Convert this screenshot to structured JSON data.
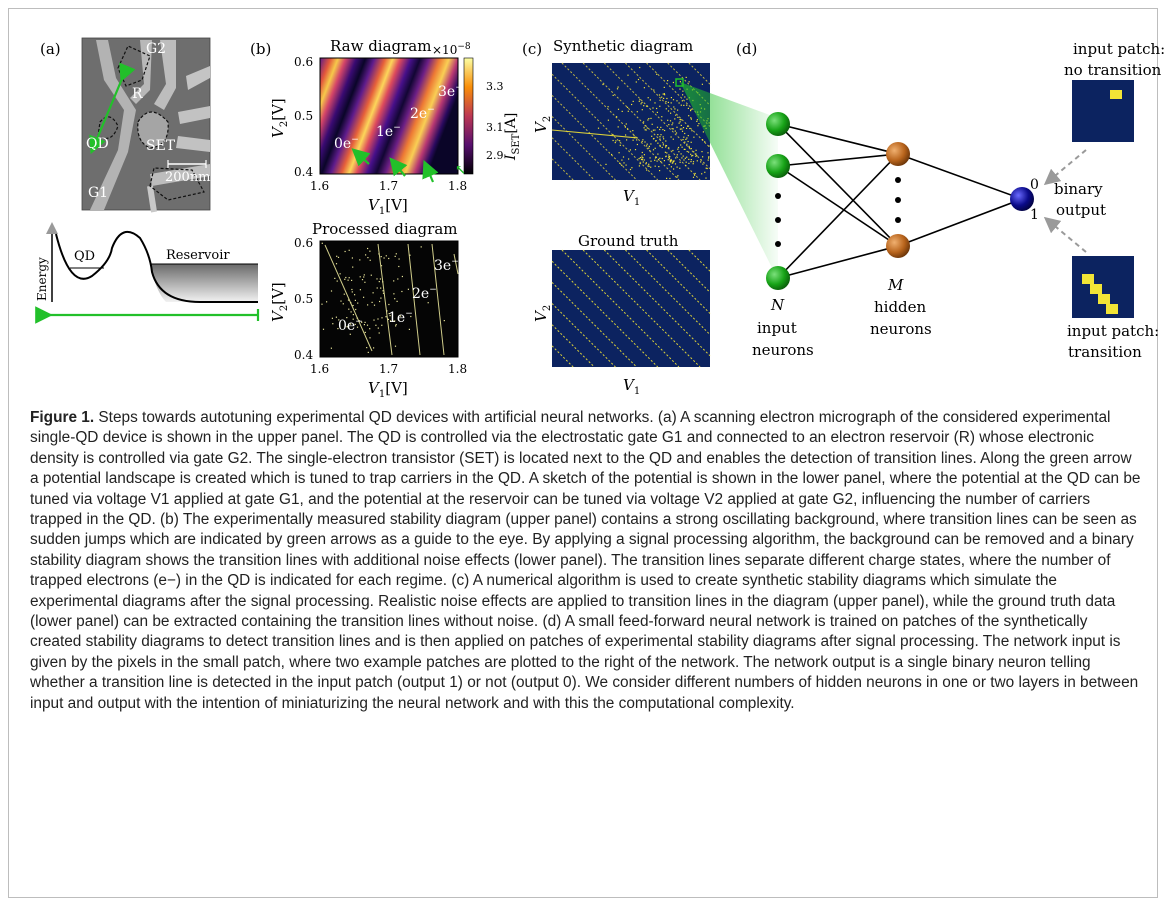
{
  "panels": {
    "a": {
      "label": "(a)",
      "sem_labels": {
        "g2": "G2",
        "r": "R",
        "qd": "QD",
        "set": "SET",
        "g1": "G1",
        "scale": "200nm"
      },
      "energy": {
        "ylabel": "Energy",
        "qd": "QD",
        "reservoir": "Reservoir"
      }
    },
    "b": {
      "label": "(b)",
      "raw": {
        "title": "Raw diagram",
        "exponent": "×10",
        "exponent_power": "−8",
        "colorbar_ticks": [
          "3.3",
          "3.1",
          "2.9"
        ],
        "colorbar_label": "I",
        "colorbar_label_sub": "SET",
        "colorbar_unit": "[A]",
        "charge_labels": [
          "0e",
          "1e",
          "2e",
          "3e"
        ],
        "charge_sup": "−"
      },
      "processed": {
        "title": "Processed diagram",
        "charge_labels": [
          "0e",
          "1e",
          "2e",
          "3e"
        ],
        "charge_sup": "−"
      },
      "xticks": [
        "1.6",
        "1.7",
        "1.8"
      ],
      "yticks": [
        "0.6",
        "0.5",
        "0.4"
      ],
      "xlabel": "V",
      "xlabel_sub": "1",
      "ylabel": "V",
      "ylabel_sub": "2",
      "unit": "[V]"
    },
    "c": {
      "label": "(c)",
      "synthetic_title": "Synthetic diagram",
      "ground_truth_title": "Ground truth",
      "xlabel": "V",
      "xlabel_sub": "1",
      "ylabel": "V",
      "ylabel_sub": "2"
    },
    "d": {
      "label": "(d)",
      "n_label": "N",
      "input_neurons": [
        "input",
        "neurons"
      ],
      "m_label": "M",
      "hidden_neurons": [
        "hidden",
        "neurons"
      ],
      "output_zero": "0",
      "output_one": "1",
      "binary_output": [
        "binary",
        "output"
      ],
      "patch_no_transition": [
        "input patch:",
        "no transition"
      ],
      "patch_transition": [
        "input patch:",
        "transition"
      ]
    }
  },
  "colors": {
    "green": "#22c02a",
    "navy": "#0c2360",
    "yellow": "#f2e436",
    "neuron_green": "#17a317",
    "neuron_brown": "#b8641c",
    "neuron_blue": "#0a0a8a"
  },
  "caption": {
    "label": "Figure 1.",
    "text": "Steps towards autotuning experimental QD devices with artificial neural networks. (a) A scanning electron micrograph of the considered experimental single-QD device is shown in the upper panel. The QD is controlled via the electrostatic gate G1 and connected to an electron reservoir (R) whose electronic density is controlled via gate G2. The single-electron transistor (SET) is located next to the QD and enables the detection of transition lines. Along the green arrow a potential landscape is created which is tuned to trap carriers in the QD. A sketch of the potential is shown in the lower panel, where the potential at the QD can be tuned via voltage V1 applied at gate G1, and the potential at the reservoir can be tuned via voltage V2 applied at gate G2, influencing the number of carriers trapped in the QD. (b) The experimentally measured stability diagram (upper panel) contains a strong oscillating background, where transition lines can be seen as sudden jumps which are indicated by green arrows as a guide to the eye. By applying a signal processing algorithm, the background can be removed and a binary stability diagram shows the transition lines with additional noise effects (lower panel). The transition lines separate different charge states, where the number of trapped electrons (e−) in the QD is indicated for each regime. (c) A numerical algorithm is used to create synthetic stability diagrams which simulate the experimental diagrams after the signal processing. Realistic noise effects are applied to transition lines in the diagram (upper panel), while the ground truth data (lower panel) can be extracted containing the transition lines without noise. (d) A small feed-forward neural network is trained on patches of the synthetically created stability diagrams to detect transition lines and is then applied on patches of experimental stability diagrams after signal processing. The network input is given by the pixels in the small patch, where two example patches are plotted to the right of the network. The network output is a single binary neuron telling whether a transition line is detected in the input patch (output 1) or not (output 0). We consider different numbers of hidden neurons in one or two layers in between input and output with the intention of miniaturizing the neural network and with this the computational complexity."
  }
}
